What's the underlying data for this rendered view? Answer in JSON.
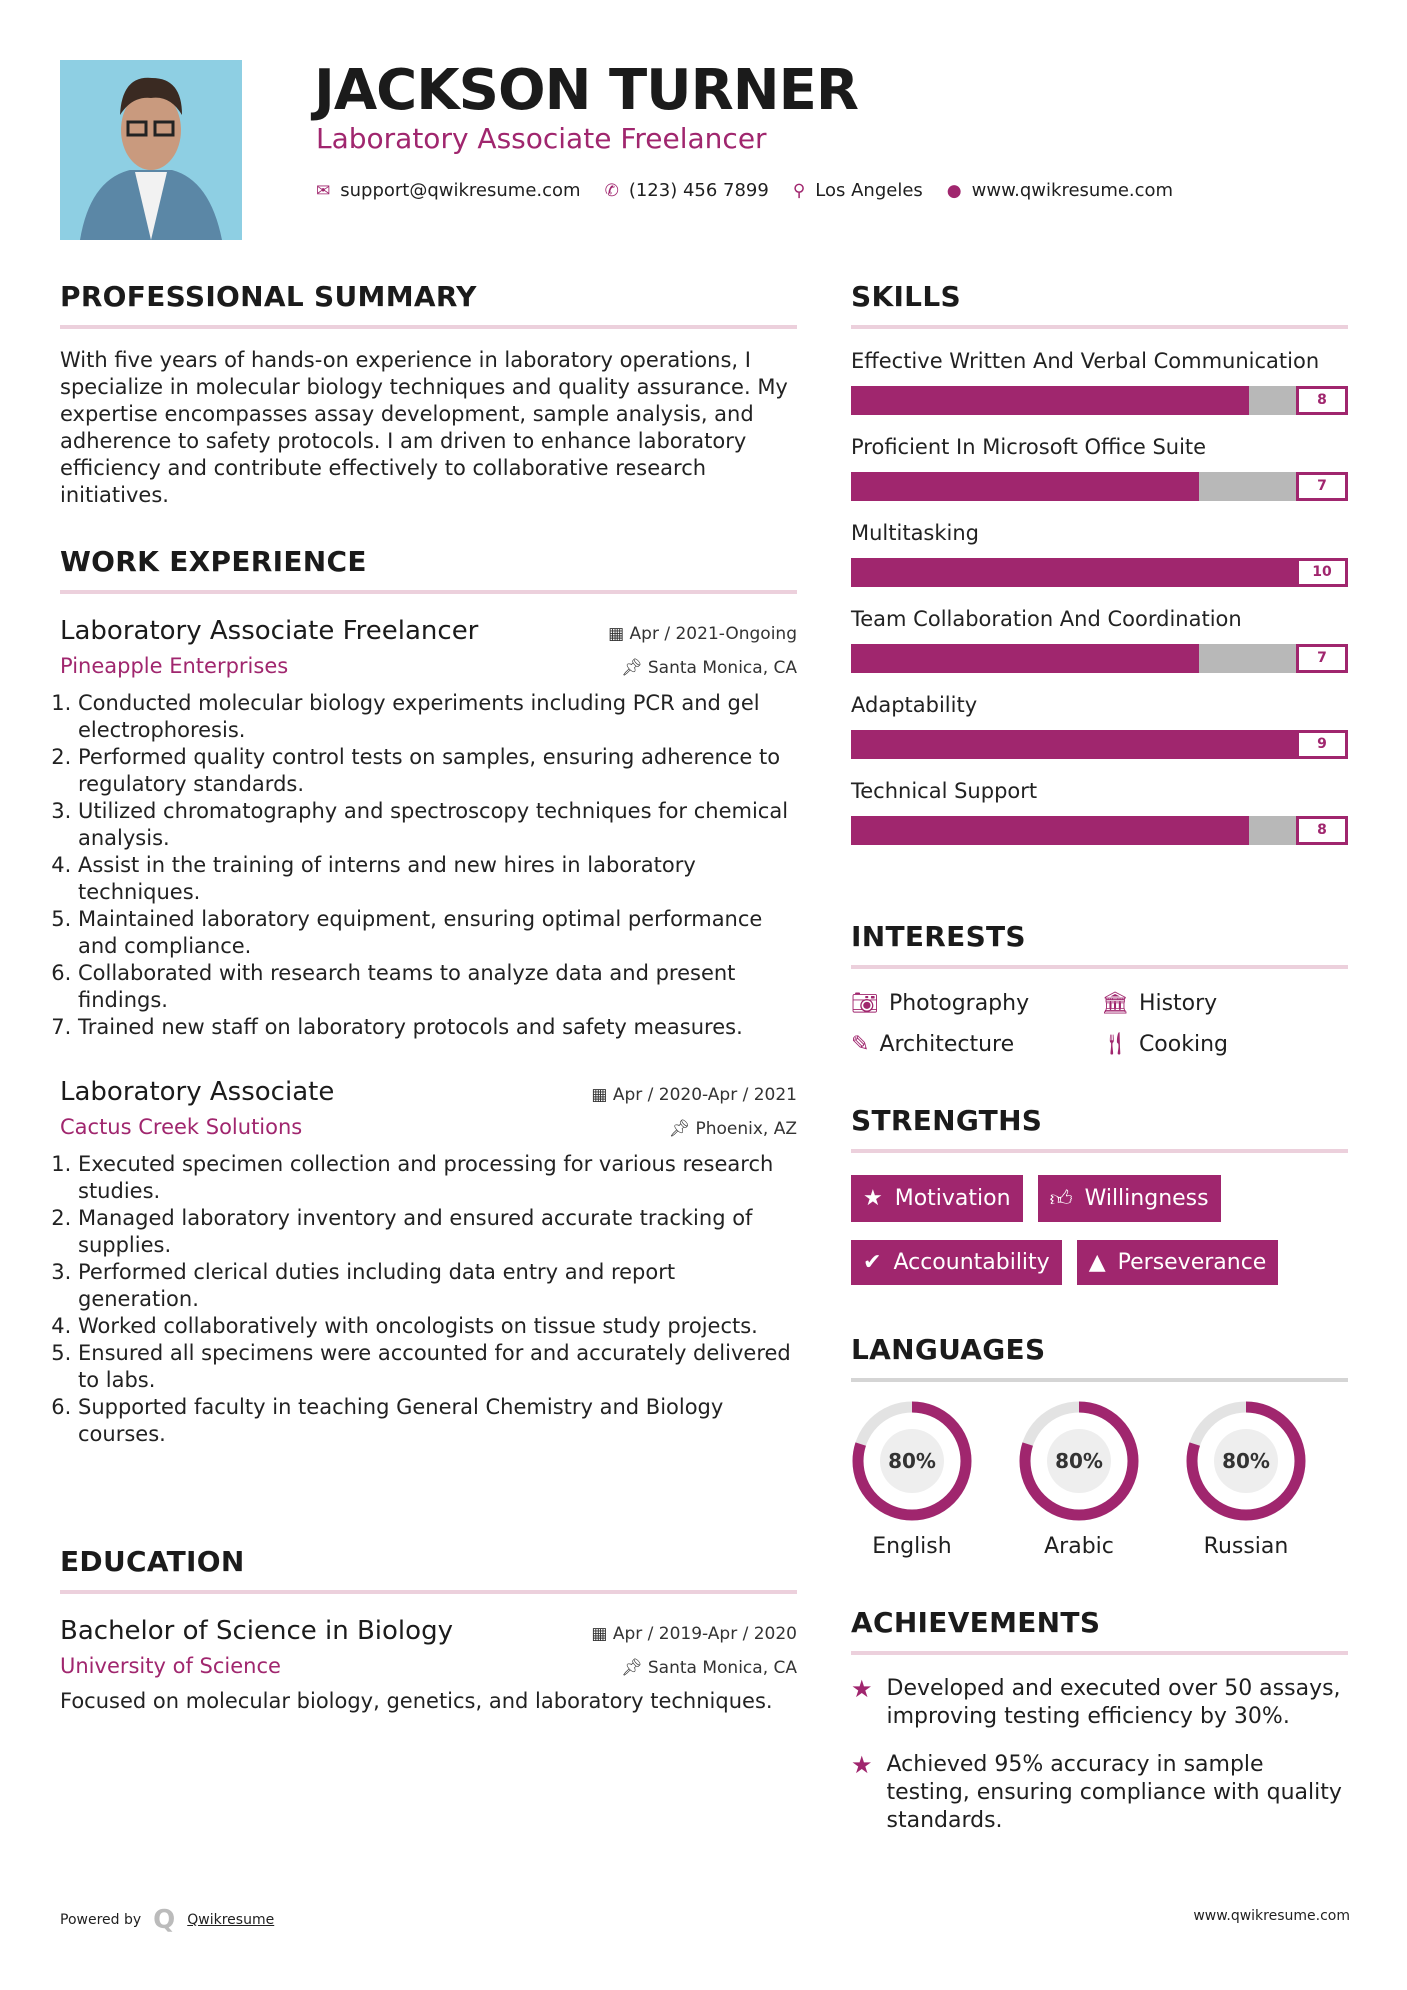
{
  "header": {
    "name": "JACKSON TURNER",
    "title": "Laboratory Associate Freelancer",
    "email": "support@qwikresume.com",
    "phone": "(123) 456 7899",
    "location": "Los Angeles",
    "website": "www.qwikresume.com"
  },
  "accent": "#a0266e",
  "summary": {
    "heading": "PROFESSIONAL SUMMARY",
    "text": "With five years of hands-on experience in laboratory operations, I specialize in molecular biology techniques and quality assurance. My expertise encompasses assay development, sample analysis, and adherence to safety protocols. I am driven to enhance laboratory efficiency and contribute effectively to collaborative research initiatives."
  },
  "work": {
    "heading": "WORK EXPERIENCE",
    "jobs": [
      {
        "title": "Laboratory Associate Freelancer",
        "date": "Apr / 2021-Ongoing",
        "company": "Pineapple Enterprises",
        "location": "Santa Monica, CA",
        "items": [
          "Conducted molecular biology experiments including PCR and gel electrophoresis.",
          "Performed quality control tests on samples, ensuring adherence to regulatory standards.",
          "Utilized chromatography and spectroscopy techniques for chemical analysis.",
          "Assist in the training of interns and new hires in laboratory techniques.",
          "Maintained laboratory equipment, ensuring optimal performance and compliance.",
          "Collaborated with research teams to analyze data and present findings.",
          "Trained new staff on laboratory protocols and safety measures."
        ]
      },
      {
        "title": "Laboratory Associate",
        "date": "Apr / 2020-Apr / 2021",
        "company": "Cactus Creek Solutions",
        "location": "Phoenix, AZ",
        "items": [
          "Executed specimen collection and processing for various research studies.",
          "Managed laboratory inventory and ensured accurate tracking of supplies.",
          "Performed clerical duties including data entry and report generation.",
          "Worked collaboratively with oncologists on tissue study projects.",
          "Ensured all specimens were accounted for and accurately delivered to labs.",
          "Supported faculty in teaching General Chemistry and Biology courses."
        ]
      }
    ]
  },
  "education": {
    "heading": "EDUCATION",
    "degree": "Bachelor of Science in Biology",
    "date": "Apr / 2019-Apr / 2020",
    "school": "University of Science",
    "location": "Santa Monica, CA",
    "text": "Focused on molecular biology, genetics, and laboratory techniques."
  },
  "skills": {
    "heading": "SKILLS",
    "items": [
      {
        "label": "Effective Written And Verbal Communication",
        "level": "8"
      },
      {
        "label": "Proficient In Microsoft Office Suite",
        "level": "7"
      },
      {
        "label": "Multitasking",
        "level": "10"
      },
      {
        "label": "Team Collaboration And Coordination",
        "level": "7"
      },
      {
        "label": "Adaptability",
        "level": "9"
      },
      {
        "label": "Technical Support",
        "level": "8"
      }
    ]
  },
  "interests": {
    "heading": "INTERESTS",
    "items": [
      {
        "label": "Photography",
        "icon": "camera-icon"
      },
      {
        "label": "History",
        "icon": "museum-icon"
      },
      {
        "label": "Architecture",
        "icon": "ruler-icon"
      },
      {
        "label": "Cooking",
        "icon": "utensils-icon"
      }
    ]
  },
  "strengths": {
    "heading": "STRENGTHS",
    "items": [
      {
        "label": "Motivation",
        "icon": "star-icon"
      },
      {
        "label": "Willingness",
        "icon": "thumbs-up-icon"
      },
      {
        "label": "Accountability",
        "icon": "check-circle-icon"
      },
      {
        "label": "Perseverance",
        "icon": "road-icon"
      }
    ]
  },
  "languages": {
    "heading": "LANGUAGES",
    "items": [
      {
        "name": "English",
        "percent": 80,
        "label": "80%"
      },
      {
        "name": "Arabic",
        "percent": 80,
        "label": "80%"
      },
      {
        "name": "Russian",
        "percent": 80,
        "label": "80%"
      }
    ]
  },
  "achievements": {
    "heading": "ACHIEVEMENTS",
    "items": [
      "Developed and executed over 50 assays, improving testing efficiency by 30%.",
      "Achieved 95% accuracy in sample testing, ensuring compliance with quality standards."
    ]
  },
  "footer": {
    "powered": "Powered by",
    "brand": "Qwikresume",
    "site": "www.qwikresume.com"
  }
}
